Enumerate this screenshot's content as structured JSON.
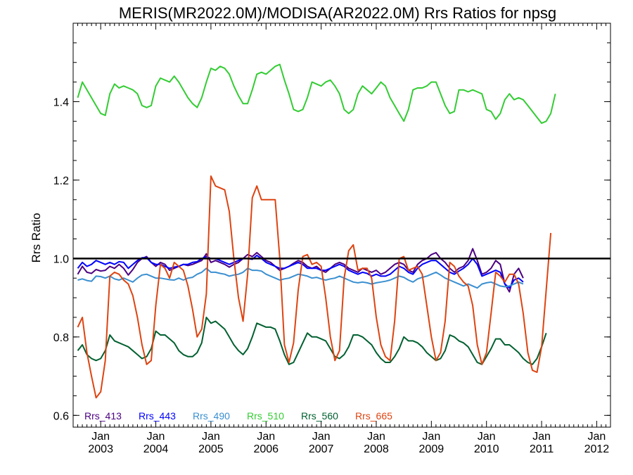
{
  "chart_data": {
    "type": "line",
    "title": "MERIS(MR2022.0M)/MODISA(AR2022.0M)  Rrs Ratios for npsg",
    "xlabel": "",
    "ylabel": "Rrs Ratio",
    "xlim": [
      "2002-07",
      "2012-04"
    ],
    "ylim": [
      0.57,
      1.6
    ],
    "x_start": "2002-08",
    "x_step": "1 month",
    "yticks": [
      0.6,
      0.8,
      1.0,
      1.2,
      1.4
    ],
    "ytick_labels": [
      "0.6",
      "0.8",
      "1.0",
      "1.2",
      "1.4"
    ],
    "xticks": [
      {
        "month": "Jan",
        "year": "2003"
      },
      {
        "month": "Jan",
        "year": "2004"
      },
      {
        "month": "Jan",
        "year": "2005"
      },
      {
        "month": "Jan",
        "year": "2006"
      },
      {
        "month": "Jan",
        "year": "2007"
      },
      {
        "month": "Jan",
        "year": "2008"
      },
      {
        "month": "Jan",
        "year": "2009"
      },
      {
        "month": "Jan",
        "year": "2010"
      },
      {
        "month": "Jan",
        "year": "2011"
      },
      {
        "month": "Jan",
        "year": "2012"
      }
    ],
    "reference_line": 1.0,
    "legend_position": "bottom-left",
    "grid": false,
    "series": [
      {
        "name": "Rrs_413",
        "color": "#4b0082",
        "values": [
          0.96,
          0.98,
          0.965,
          0.962,
          0.972,
          0.968,
          0.97,
          0.98,
          0.975,
          0.985,
          0.975,
          0.958,
          0.972,
          0.99,
          1.0,
          1.005,
          0.99,
          0.98,
          0.99,
          0.985,
          0.97,
          0.975,
          0.98,
          0.985,
          0.982,
          0.985,
          0.99,
          0.995,
          1.012,
          0.99,
          0.995,
          0.99,
          0.985,
          0.978,
          0.985,
          0.99,
          1.0,
          1.01,
          1.005,
          1.015,
          1.005,
          0.995,
          0.99,
          0.98,
          0.97,
          0.975,
          0.98,
          0.988,
          0.995,
          0.99,
          0.98,
          0.975,
          0.98,
          0.97,
          0.965,
          0.975,
          0.985,
          0.99,
          0.985,
          0.975,
          0.97,
          0.965,
          0.975,
          0.97,
          0.965,
          0.97,
          0.96,
          0.965,
          0.975,
          0.985,
          0.99,
          0.985,
          0.97,
          0.965,
          0.985,
          0.995,
          1.0,
          1.01,
          1.015,
          1.0,
          0.99,
          0.975,
          0.965,
          0.975,
          0.98,
          0.995,
          1.025,
          0.995,
          0.96,
          0.965,
          0.975,
          0.995,
          0.985,
          0.935,
          0.915,
          0.96,
          0.975,
          0.95
        ]
      },
      {
        "name": "Rrs_443",
        "color": "#0000ff",
        "values": [
          0.975,
          0.99,
          0.98,
          0.985,
          0.995,
          0.99,
          0.985,
          0.99,
          0.985,
          0.992,
          0.99,
          0.975,
          0.985,
          0.995,
          1.002,
          1.002,
          0.99,
          0.985,
          0.985,
          0.98,
          0.975,
          0.978,
          0.98,
          0.985,
          0.985,
          0.99,
          0.992,
          1.0,
          1.005,
          1.0,
          1.0,
          0.995,
          0.99,
          0.985,
          0.99,
          0.995,
          1.0,
          1.0,
          0.998,
          1.008,
          1.0,
          0.99,
          0.985,
          0.98,
          0.975,
          0.975,
          0.98,
          0.985,
          0.99,
          0.985,
          0.975,
          0.975,
          0.975,
          0.97,
          0.97,
          0.975,
          0.98,
          0.985,
          0.98,
          0.97,
          0.965,
          0.96,
          0.965,
          0.962,
          0.955,
          0.96,
          0.955,
          0.955,
          0.96,
          0.97,
          0.98,
          0.975,
          0.965,
          0.96,
          0.975,
          0.985,
          0.99,
          0.995,
          0.995,
          0.985,
          0.975,
          0.965,
          0.96,
          0.968,
          0.975,
          0.985,
          1.0,
          0.985,
          0.955,
          0.96,
          0.965,
          0.97,
          0.965,
          0.935,
          0.925,
          0.945,
          0.95,
          0.94
        ]
      },
      {
        "name": "Rrs_490",
        "color": "#3a8fd0",
        "values": [
          0.945,
          0.948,
          0.944,
          0.942,
          0.955,
          0.954,
          0.95,
          0.955,
          0.948,
          0.945,
          0.95,
          0.945,
          0.94,
          0.95,
          0.958,
          0.96,
          0.955,
          0.95,
          0.95,
          0.948,
          0.946,
          0.945,
          0.95,
          0.945,
          0.95,
          0.952,
          0.96,
          0.965,
          0.975,
          0.965,
          0.965,
          0.962,
          0.96,
          0.955,
          0.958,
          0.96,
          0.965,
          0.975,
          0.97,
          0.97,
          0.968,
          0.96,
          0.955,
          0.95,
          0.945,
          0.948,
          0.95,
          0.955,
          0.96,
          0.958,
          0.955,
          0.95,
          0.952,
          0.948,
          0.945,
          0.948,
          0.95,
          0.955,
          0.95,
          0.945,
          0.94,
          0.938,
          0.94,
          0.938,
          0.935,
          0.938,
          0.94,
          0.942,
          0.945,
          0.95,
          0.955,
          0.952,
          0.945,
          0.94,
          0.948,
          0.952,
          0.955,
          0.96,
          0.965,
          0.958,
          0.95,
          0.945,
          0.94,
          0.935,
          0.93,
          0.935,
          0.93,
          0.925,
          0.935,
          0.938,
          0.94,
          0.935,
          0.93,
          0.928,
          0.93,
          0.935,
          0.94,
          0.935
        ]
      },
      {
        "name": "Rrs_510",
        "color": "#33cc33",
        "values": [
          1.41,
          1.45,
          1.43,
          1.41,
          1.39,
          1.37,
          1.365,
          1.42,
          1.445,
          1.435,
          1.44,
          1.435,
          1.43,
          1.42,
          1.39,
          1.385,
          1.39,
          1.44,
          1.46,
          1.455,
          1.45,
          1.465,
          1.45,
          1.43,
          1.41,
          1.395,
          1.385,
          1.41,
          1.45,
          1.485,
          1.48,
          1.49,
          1.485,
          1.47,
          1.44,
          1.415,
          1.395,
          1.395,
          1.43,
          1.47,
          1.475,
          1.47,
          1.48,
          1.49,
          1.495,
          1.455,
          1.42,
          1.38,
          1.375,
          1.38,
          1.41,
          1.45,
          1.445,
          1.44,
          1.45,
          1.455,
          1.44,
          1.42,
          1.38,
          1.37,
          1.38,
          1.42,
          1.44,
          1.43,
          1.42,
          1.435,
          1.45,
          1.44,
          1.41,
          1.39,
          1.37,
          1.35,
          1.38,
          1.43,
          1.435,
          1.435,
          1.44,
          1.45,
          1.45,
          1.42,
          1.39,
          1.37,
          1.375,
          1.43,
          1.43,
          1.425,
          1.43,
          1.425,
          1.42,
          1.38,
          1.375,
          1.355,
          1.37,
          1.405,
          1.42,
          1.405,
          1.41,
          1.405,
          1.39,
          1.375,
          1.36,
          1.345,
          1.35,
          1.37,
          1.42
        ]
      },
      {
        "name": "Rrs_560",
        "color": "#006030",
        "values": [
          0.765,
          0.78,
          0.755,
          0.745,
          0.74,
          0.745,
          0.765,
          0.805,
          0.79,
          0.785,
          0.78,
          0.775,
          0.765,
          0.755,
          0.745,
          0.75,
          0.77,
          0.815,
          0.805,
          0.805,
          0.795,
          0.785,
          0.765,
          0.755,
          0.75,
          0.75,
          0.76,
          0.785,
          0.85,
          0.835,
          0.84,
          0.83,
          0.82,
          0.8,
          0.78,
          0.765,
          0.755,
          0.77,
          0.8,
          0.835,
          0.83,
          0.825,
          0.825,
          0.82,
          0.79,
          0.755,
          0.73,
          0.735,
          0.76,
          0.785,
          0.81,
          0.8,
          0.8,
          0.795,
          0.79,
          0.77,
          0.75,
          0.745,
          0.755,
          0.775,
          0.805,
          0.805,
          0.8,
          0.79,
          0.78,
          0.76,
          0.745,
          0.735,
          0.735,
          0.75,
          0.77,
          0.8,
          0.79,
          0.79,
          0.785,
          0.775,
          0.76,
          0.75,
          0.74,
          0.745,
          0.765,
          0.805,
          0.8,
          0.79,
          0.785,
          0.775,
          0.755,
          0.735,
          0.73,
          0.75,
          0.77,
          0.795,
          0.795,
          0.78,
          0.78,
          0.77,
          0.76,
          0.745,
          0.735,
          0.73,
          0.745,
          0.775,
          0.81
        ]
      },
      {
        "name": "Rrs_665",
        "color": "#dd4411",
        "values": [
          0.825,
          0.85,
          0.76,
          0.7,
          0.645,
          0.66,
          0.74,
          0.955,
          0.965,
          0.96,
          0.945,
          0.935,
          0.905,
          0.85,
          0.78,
          0.73,
          0.74,
          0.88,
          0.985,
          0.975,
          0.95,
          0.99,
          0.98,
          0.97,
          0.93,
          0.87,
          0.8,
          0.82,
          0.91,
          1.21,
          1.185,
          1.18,
          1.175,
          1.12,
          1.0,
          0.9,
          0.84,
          0.96,
          1.155,
          1.185,
          1.15,
          1.15,
          1.15,
          1.15,
          1.0,
          0.78,
          0.735,
          0.785,
          0.92,
          1.005,
          1.01,
          0.985,
          0.99,
          0.98,
          0.9,
          0.8,
          0.74,
          0.765,
          0.95,
          1.02,
          1.035,
          0.97,
          0.975,
          0.975,
          0.95,
          0.85,
          0.78,
          0.75,
          0.74,
          0.84,
          1.0,
          1.005,
          0.97,
          0.975,
          0.98,
          0.96,
          0.88,
          0.8,
          0.74,
          0.76,
          0.84,
          0.99,
          0.98,
          0.955,
          0.94,
          0.93,
          0.88,
          0.78,
          0.73,
          0.76,
          0.86,
          0.965,
          0.955,
          0.94,
          0.96,
          0.96,
          0.935,
          0.86,
          0.76,
          0.715,
          0.71,
          0.775,
          0.92,
          1.065
        ]
      }
    ]
  }
}
